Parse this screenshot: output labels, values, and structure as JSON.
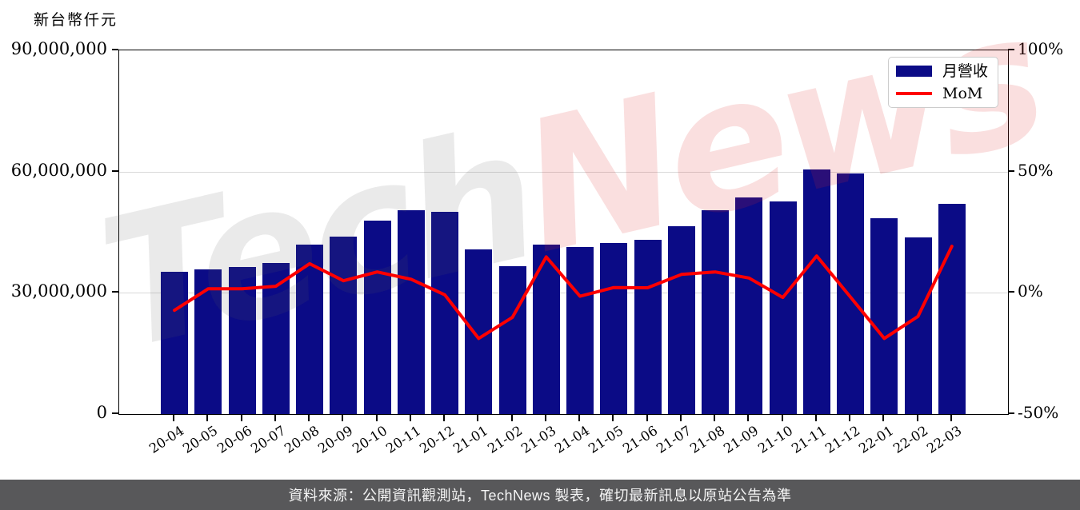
{
  "axis_unit_label": "新台幣仟元",
  "watermark": {
    "part1": "Tech",
    "part2": "News"
  },
  "legend": {
    "bar_label": "月營收",
    "line_label": "MoM"
  },
  "footer": {
    "text": "資料來源：公開資訊觀測站，TechNews 製表，確切最新訊息以原站公告為準",
    "background": "#58585a"
  },
  "colors": {
    "bar": "#0b0b86",
    "line": "#fe0000",
    "grid": "#d9d9d9",
    "spine": "#000000",
    "watermark_gray": "rgba(90,90,90,0.13)",
    "watermark_red": "rgba(222,40,40,0.15)"
  },
  "chart_data": {
    "type": "bar",
    "subtype": "bar+line combo",
    "title": "",
    "xlabel": "",
    "ylabel_left": "新台幣仟元",
    "ylabel_right": "%",
    "grid": "horizontal-only",
    "legend_position": "top-right",
    "categories": [
      "20-04",
      "20-05",
      "20-06",
      "20-07",
      "20-08",
      "20-09",
      "20-10",
      "20-11",
      "20-12",
      "21-01",
      "21-02",
      "21-03",
      "21-04",
      "21-05",
      "21-06",
      "21-07",
      "21-08",
      "21-09",
      "21-10",
      "21-11",
      "21-12",
      "22-01",
      "22-02",
      "22-03"
    ],
    "series": [
      {
        "name": "月營收",
        "type": "bar",
        "axis": "left",
        "unit": "新台幣仟元",
        "values": [
          35200000,
          35800000,
          36400000,
          37400000,
          41900000,
          44000000,
          47800000,
          50500000,
          50100000,
          40700000,
          36600000,
          42000000,
          41400000,
          42300000,
          43200000,
          46500000,
          50500000,
          53600000,
          52600000,
          60600000,
          59600000,
          48400000,
          43700000,
          52100000
        ]
      },
      {
        "name": "MoM",
        "type": "line",
        "axis": "right",
        "unit": "%",
        "values": [
          -7.2,
          1.7,
          1.7,
          2.7,
          12.0,
          5.0,
          8.6,
          5.6,
          -0.8,
          -18.8,
          -10.1,
          14.8,
          -1.4,
          2.2,
          2.1,
          7.6,
          8.6,
          6.1,
          -1.9,
          15.2,
          -1.7,
          -18.8,
          -9.7,
          19.2
        ]
      }
    ],
    "left_axis": {
      "range": [
        0,
        90000000
      ],
      "ticks": [
        {
          "value": 0,
          "label": "0"
        },
        {
          "value": 30000000,
          "label": "30,000,000"
        },
        {
          "value": 60000000,
          "label": "60,000,000"
        },
        {
          "value": 90000000,
          "label": "90,000,000"
        }
      ]
    },
    "right_axis": {
      "range": [
        -50,
        100
      ],
      "ticks": [
        {
          "value": -50,
          "label": "-50%"
        },
        {
          "value": 0,
          "label": "0%"
        },
        {
          "value": 50,
          "label": "50%"
        },
        {
          "value": 100,
          "label": "100%"
        }
      ]
    }
  }
}
